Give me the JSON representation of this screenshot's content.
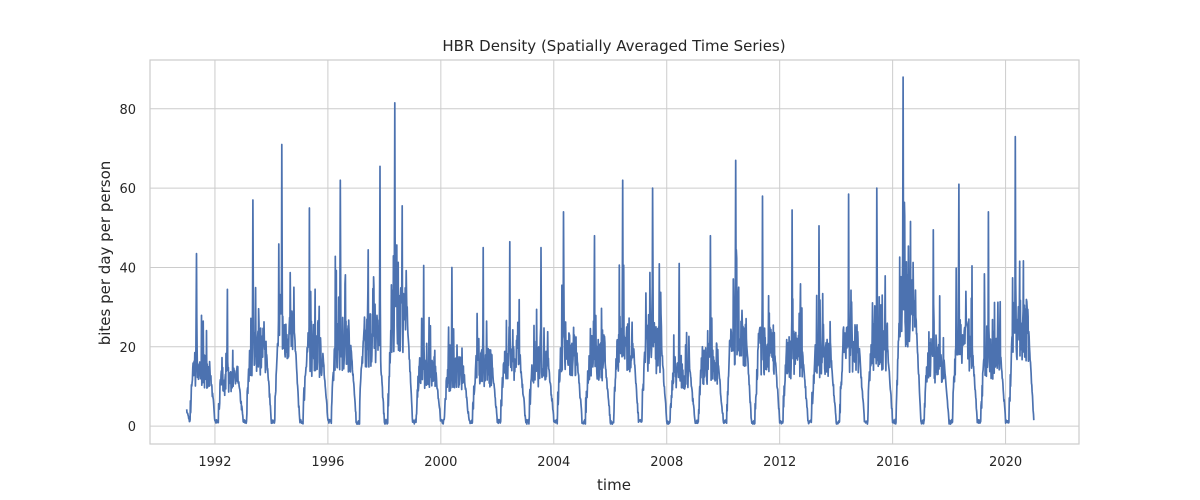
{
  "chart_data": {
    "type": "line",
    "title": "HBR Density (Spatially Averaged Time Series)",
    "xlabel": "time",
    "ylabel": "bites per day per person",
    "xlim": [
      1989.7,
      2022.6
    ],
    "ylim": [
      -4.5,
      92.3
    ],
    "x_ticks": [
      1992,
      1996,
      2000,
      2004,
      2008,
      2012,
      2016,
      2020
    ],
    "y_ticks": [
      0,
      20,
      40,
      60,
      80
    ],
    "grid": true,
    "line_color": "#4c72b0",
    "series": [
      {
        "x_start": 1991.0,
        "x_end": 2021.0,
        "annual_peaks": [
          43.5,
          34.5,
          57.0,
          71.0,
          55.0,
          62.0,
          65.5,
          81.5,
          40.5,
          40.0,
          45.0,
          46.5,
          45.0,
          54.0,
          48.0,
          62.0,
          60.0,
          41.0,
          48.0,
          67.0,
          58.0,
          54.5,
          50.5,
          58.5,
          60.0,
          88.0,
          49.5,
          61.0,
          54.0,
          73.0
        ],
        "peak_fraction_of_year": [
          0.35,
          0.45,
          0.35,
          0.38,
          0.35,
          0.45,
          0.85,
          0.38,
          0.4,
          0.4,
          0.5,
          0.45,
          0.55,
          0.35,
          0.45,
          0.45,
          0.5,
          0.45,
          0.55,
          0.45,
          0.4,
          0.45,
          0.4,
          0.45,
          0.45,
          0.38,
          0.45,
          0.35,
          0.4,
          0.35
        ],
        "trough_value": 0.5,
        "start_value": 3.5,
        "end_value": 1.5
      }
    ]
  }
}
